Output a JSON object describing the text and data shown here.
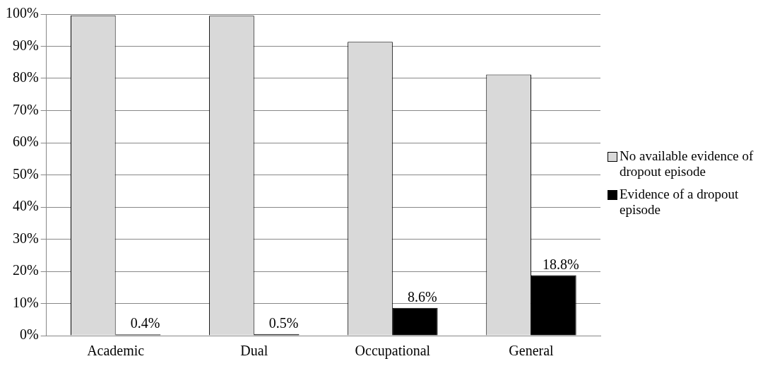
{
  "chart_data": {
    "type": "bar",
    "categories": [
      "Academic",
      "Dual",
      "Occupational",
      "General"
    ],
    "series": [
      {
        "name": "No available evidence of dropout episode",
        "color": "#d9d9d9",
        "values": [
          99.6,
          99.5,
          91.4,
          81.2
        ]
      },
      {
        "name": "Evidence of a dropout episode",
        "color": "#000000",
        "values": [
          0.4,
          0.5,
          8.6,
          18.8
        ],
        "value_labels": [
          "0.4%",
          "0.5%",
          "8.6%",
          "18.8%"
        ]
      }
    ],
    "ylim": [
      0,
      100
    ],
    "yticks": [
      {
        "value": 0,
        "label": "0%"
      },
      {
        "value": 10,
        "label": "10%"
      },
      {
        "value": 20,
        "label": "20%"
      },
      {
        "value": 30,
        "label": "30%"
      },
      {
        "value": 40,
        "label": "40%"
      },
      {
        "value": 50,
        "label": "50%"
      },
      {
        "value": 60,
        "label": "60%"
      },
      {
        "value": 70,
        "label": "70%"
      },
      {
        "value": 80,
        "label": "80%"
      },
      {
        "value": 90,
        "label": "90%"
      },
      {
        "value": 100,
        "label": "100%"
      }
    ],
    "grid": "y",
    "legend": "right"
  }
}
